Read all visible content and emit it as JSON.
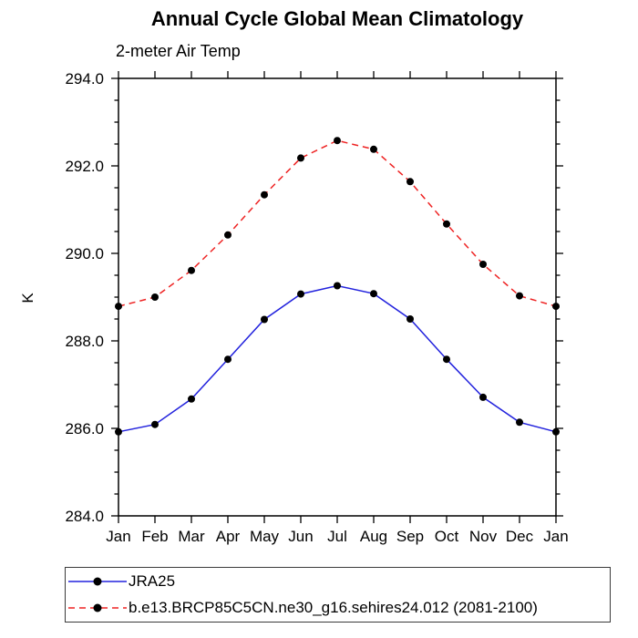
{
  "title": "Annual Cycle Global Mean Climatology",
  "subtitle": "2-meter Air Temp",
  "chart_data": {
    "type": "line",
    "x_categories": [
      "Jan",
      "Feb",
      "Mar",
      "Apr",
      "May",
      "Jun",
      "Jul",
      "Aug",
      "Sep",
      "Oct",
      "Nov",
      "Dec",
      "Jan"
    ],
    "ylabel": "K",
    "ylim": [
      284.0,
      294.0
    ],
    "ytick_major_step": 2.0,
    "ytick_minor_step": 0.5,
    "ytick_label_decimals": 1,
    "grid": false,
    "frame_color": "#000000",
    "legend_position": "bottom-left-box",
    "series": [
      {
        "name": "JRA25",
        "color": "#2222dd",
        "line_style": "solid",
        "marker": "filled-circle",
        "marker_color": "#000000",
        "values": [
          285.92,
          286.09,
          286.67,
          287.58,
          288.49,
          289.07,
          289.26,
          289.08,
          288.5,
          287.58,
          286.71,
          286.14,
          285.92
        ]
      },
      {
        "name": "b.e13.BRCP85C5CN.ne30_g16.sehires24.012 (2081-2100)",
        "color": "#ee2222",
        "line_style": "dashed",
        "marker": "filled-circle",
        "marker_color": "#000000",
        "values": [
          288.79,
          289.0,
          289.61,
          290.42,
          291.34,
          292.18,
          292.58,
          292.38,
          291.64,
          290.67,
          289.75,
          289.03,
          288.79
        ]
      }
    ]
  }
}
